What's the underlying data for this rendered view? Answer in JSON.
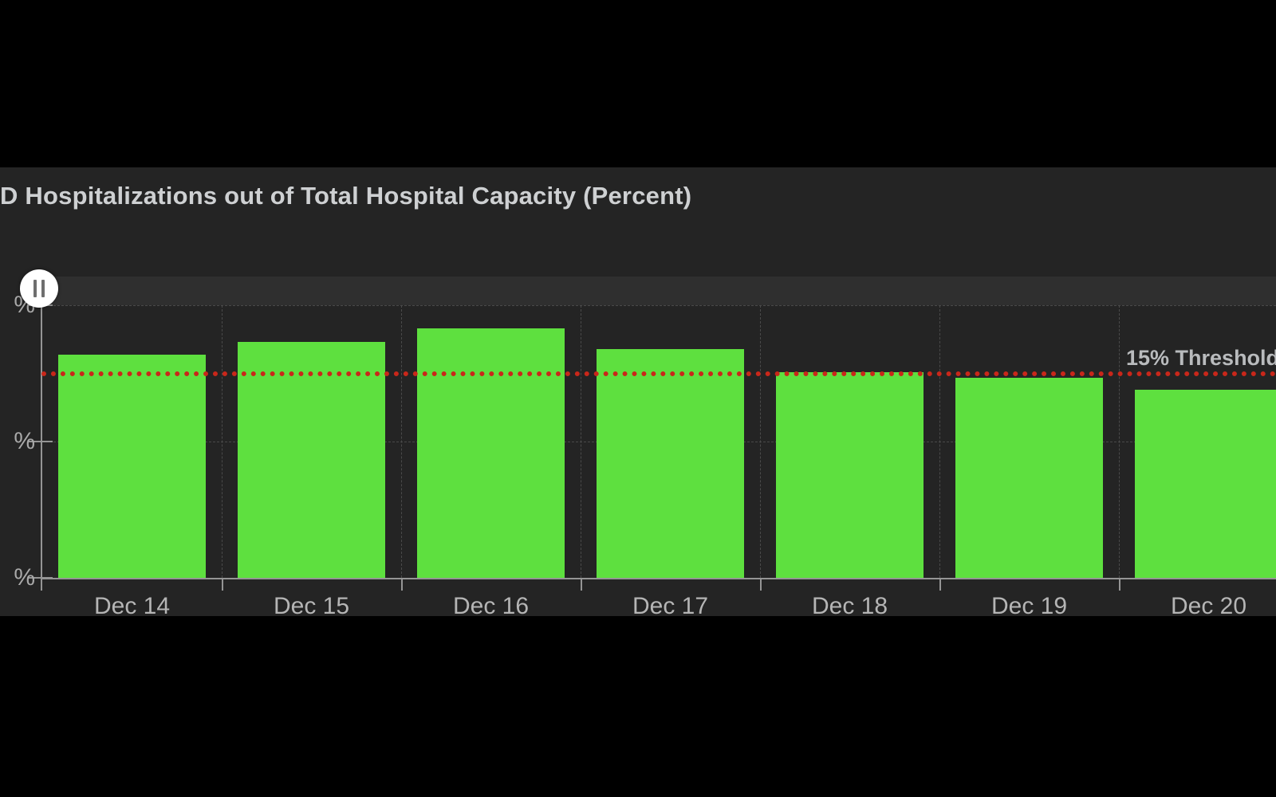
{
  "header": {
    "title": "D Hospitalizations out of Total Hospital Capacity (Percent)"
  },
  "time_slider": {
    "state": "playing",
    "button_icon": "pause"
  },
  "threshold": {
    "label": "15% Threshold",
    "value": 15,
    "color": "#c9271a"
  },
  "colors": {
    "background": "#000000",
    "panel_background": "#242424",
    "slider_track": "#2f2f2f",
    "bar_green": "#5ee03f",
    "threshold_red": "#c9271a",
    "gridline": "#4a4a4a",
    "axis": "#959595",
    "title_text": "#ced0d2",
    "tick_text": "#a9a9a9"
  },
  "chart_data": {
    "type": "bar",
    "title": "D Hospitalizations out of Total Hospital Capacity (Percent)",
    "categories": [
      "Dec 14",
      "Dec 15",
      "Dec 16",
      "Dec 17",
      "Dec 18",
      "Dec 19",
      "Dec 20"
    ],
    "values": [
      16.4,
      17.3,
      18.3,
      16.8,
      15.1,
      14.7,
      13.8
    ],
    "xlabel": "",
    "ylabel": "",
    "ylim": [
      0,
      20
    ],
    "y_ticks": [
      0,
      10,
      20
    ],
    "y_tick_labels_visible": [
      "%",
      "%",
      "%"
    ],
    "grid": true,
    "legend": false,
    "bar_color": "#5ee03f",
    "threshold": {
      "value": 15,
      "label": "15% Threshold"
    }
  }
}
